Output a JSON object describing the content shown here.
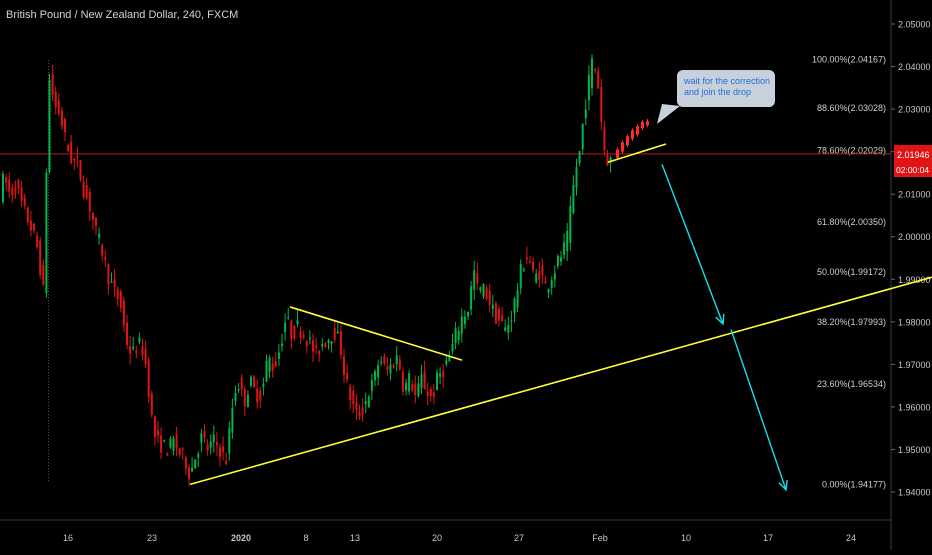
{
  "header": {
    "title": "British Pound / New Zealand Dollar, 240, FXCM"
  },
  "price_tag": {
    "price": "2.01946",
    "countdown": "02:00:04"
  },
  "annotation": {
    "line1": "wait for the correction",
    "line2": "and join the drop"
  },
  "colors": {
    "background": "#000000",
    "up": "#00b84a",
    "down": "#e01414",
    "projection": "#ff2a2a",
    "trendline": "#ffff33",
    "arrow": "#17e0e8",
    "hline": "#b81a1a",
    "price_tag_bg": "#e01414",
    "axis_text": "#c8c8c8",
    "fib_text": "#cfcfcf",
    "bubble_bg": "#c8d0dc",
    "bubble_text": "#1f6fd6"
  },
  "chart_data": {
    "type": "candlestick",
    "title": "British Pound / New Zealand Dollar, 240, FXCM",
    "symbol": "GBPNZD",
    "timeframe": "240",
    "source": "FXCM",
    "ylim": [
      1.9365,
      2.0545
    ],
    "y_ticks": [
      "2.05000",
      "2.04000",
      "2.03000",
      "2.02000",
      "2.01000",
      "2.00000",
      "1.99000",
      "1.98000",
      "1.97000",
      "1.96000",
      "1.95000",
      "1.94000"
    ],
    "x_ticks": [
      "16",
      "23",
      "2020",
      "8",
      "13",
      "20",
      "27",
      "Feb",
      "10",
      "17",
      "24"
    ],
    "current_price": 2.01946,
    "fib_levels": [
      {
        "label": "100.00%(2.04167)",
        "value": 2.04167
      },
      {
        "label": "88.60%(2.03028)",
        "value": 2.03028
      },
      {
        "label": "78.60%(2.02029)",
        "value": 2.02029
      },
      {
        "label": "61.80%(2.00350)",
        "value": 2.0035
      },
      {
        "label": "50.00%(1.99172)",
        "value": 1.99172
      },
      {
        "label": "38.20%(1.97993)",
        "value": 1.97993
      },
      {
        "label": "23.60%(1.96534)",
        "value": 1.96534
      },
      {
        "label": "0.00%(1.94177)",
        "value": 1.94177
      }
    ],
    "price_path": [
      [
        0,
        2.008
      ],
      [
        6,
        2.014
      ],
      [
        12,
        2.01
      ],
      [
        18,
        2.012
      ],
      [
        26,
        2.006
      ],
      [
        32,
        2.003
      ],
      [
        40,
        1.997
      ],
      [
        46,
        1.986
      ],
      [
        49,
        2.022
      ],
      [
        52,
        2.039
      ],
      [
        56,
        2.031
      ],
      [
        62,
        2.029
      ],
      [
        68,
        2.022
      ],
      [
        74,
        2.018
      ],
      [
        80,
        2.017
      ],
      [
        86,
        2.011
      ],
      [
        92,
        2.007
      ],
      [
        98,
        2.001
      ],
      [
        104,
        1.997
      ],
      [
        110,
        1.991
      ],
      [
        116,
        1.987
      ],
      [
        122,
        1.985
      ],
      [
        128,
        1.976
      ],
      [
        134,
        1.972
      ],
      [
        140,
        1.975
      ],
      [
        146,
        1.973
      ],
      [
        150,
        1.966
      ],
      [
        154,
        1.957
      ],
      [
        158,
        1.952
      ],
      [
        164,
        1.951
      ],
      [
        170,
        1.95
      ],
      [
        176,
        1.952
      ],
      [
        182,
        1.949
      ],
      [
        188,
        1.947
      ],
      [
        192,
        1.944
      ],
      [
        198,
        1.949
      ],
      [
        204,
        1.953
      ],
      [
        210,
        1.95
      ],
      [
        216,
        1.952
      ],
      [
        222,
        1.95
      ],
      [
        228,
        1.947
      ],
      [
        232,
        1.955
      ],
      [
        236,
        1.963
      ],
      [
        240,
        1.966
      ],
      [
        246,
        1.961
      ],
      [
        252,
        1.966
      ],
      [
        258,
        1.963
      ],
      [
        264,
        1.963
      ],
      [
        270,
        1.972
      ],
      [
        276,
        1.969
      ],
      [
        282,
        1.974
      ],
      [
        288,
        1.981
      ],
      [
        294,
        1.977
      ],
      [
        300,
        1.979
      ],
      [
        306,
        1.977
      ],
      [
        312,
        1.975
      ],
      [
        318,
        1.972
      ],
      [
        324,
        1.975
      ],
      [
        330,
        1.976
      ],
      [
        336,
        1.978
      ],
      [
        342,
        1.975
      ],
      [
        348,
        1.966
      ],
      [
        354,
        1.961
      ],
      [
        358,
        1.958
      ],
      [
        364,
        1.959
      ],
      [
        370,
        1.963
      ],
      [
        376,
        1.966
      ],
      [
        382,
        1.972
      ],
      [
        388,
        1.968
      ],
      [
        394,
        1.97
      ],
      [
        400,
        1.972
      ],
      [
        406,
        1.964
      ],
      [
        412,
        1.967
      ],
      [
        418,
        1.962
      ],
      [
        424,
        1.967
      ],
      [
        428,
        1.964
      ],
      [
        434,
        1.962
      ],
      [
        440,
        1.967
      ],
      [
        446,
        1.969
      ],
      [
        452,
        1.972
      ],
      [
        458,
        1.977
      ],
      [
        464,
        1.981
      ],
      [
        470,
        1.983
      ],
      [
        476,
        1.992
      ],
      [
        480,
        1.987
      ],
      [
        484,
        1.988
      ],
      [
        490,
        1.986
      ],
      [
        496,
        1.982
      ],
      [
        502,
        1.98
      ],
      [
        508,
        1.978
      ],
      [
        514,
        1.982
      ],
      [
        518,
        1.986
      ],
      [
        524,
        1.993
      ],
      [
        530,
        1.996
      ],
      [
        536,
        1.99
      ],
      [
        542,
        1.992
      ],
      [
        548,
        1.988
      ],
      [
        554,
        1.991
      ],
      [
        560,
        1.994
      ],
      [
        566,
        1.997
      ],
      [
        570,
        2.0
      ],
      [
        574,
        2.009
      ],
      [
        578,
        2.016
      ],
      [
        582,
        2.02
      ],
      [
        586,
        2.029
      ],
      [
        590,
        2.035
      ],
      [
        594,
        2.041
      ],
      [
        598,
        2.039
      ],
      [
        602,
        2.033
      ],
      [
        604,
        2.025
      ],
      [
        606,
        2.021
      ],
      [
        610,
        2.018
      ]
    ],
    "projection_bars": [
      {
        "x": 616,
        "open": 2.0185,
        "close": 2.0205
      },
      {
        "x": 621,
        "open": 2.02,
        "close": 2.0222
      },
      {
        "x": 626,
        "open": 2.0215,
        "close": 2.0236
      },
      {
        "x": 631,
        "open": 2.023,
        "close": 2.025
      },
      {
        "x": 636,
        "open": 2.024,
        "close": 2.026
      },
      {
        "x": 641,
        "open": 2.0255,
        "close": 2.027
      },
      {
        "x": 646,
        "open": 2.0262,
        "close": 2.0272
      }
    ],
    "trendlines": [
      {
        "name": "rising-support",
        "x1": 190,
        "y1": 1.9418,
        "x2": 932,
        "y2": 1.9905
      },
      {
        "name": "falling-resistance",
        "x1": 290,
        "y1": 1.9835,
        "x2": 462,
        "y2": 1.971
      },
      {
        "name": "correction-channel",
        "x1": 608,
        "y1": 2.0175,
        "x2": 666,
        "y2": 2.0218
      }
    ],
    "arrows": [
      {
        "x1": 662,
        "y1": 2.017,
        "x2": 723,
        "y2": 1.9795
      },
      {
        "x1": 731,
        "y1": 1.9782,
        "x2": 786,
        "y2": 1.9405
      }
    ]
  }
}
